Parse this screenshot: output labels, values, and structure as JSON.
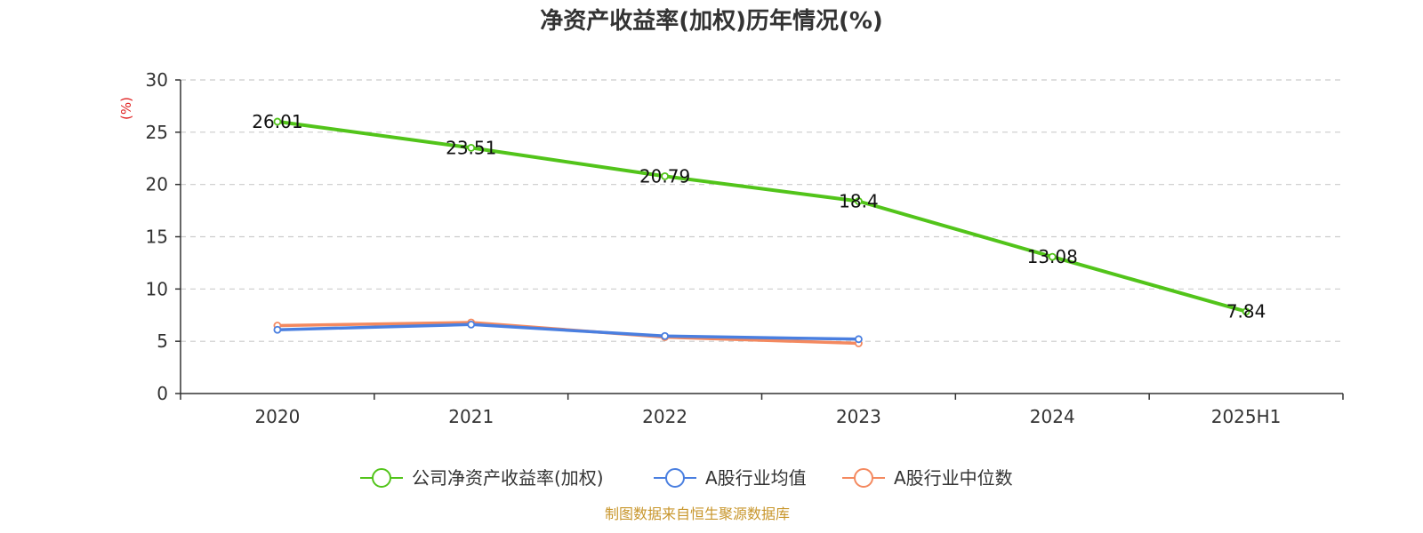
{
  "chart_data": {
    "type": "line",
    "title": "净资产收益率(加权)历年情况(%)",
    "ylabel": "(%)",
    "xlabel": "",
    "categories": [
      "2020",
      "2021",
      "2022",
      "2023",
      "2024",
      "2025H1"
    ],
    "ylim": [
      0,
      30
    ],
    "yticks": [
      0,
      5,
      10,
      15,
      20,
      25,
      30
    ],
    "grid": true,
    "legend_position": "bottom",
    "series": [
      {
        "name": "公司净资产收益率(加权)",
        "color": "#52c41a",
        "values": [
          26.01,
          23.51,
          20.79,
          18.4,
          13.08,
          7.84
        ],
        "data_labels": [
          "26.01",
          "23.51",
          "20.79",
          "18.4",
          "13.08",
          "7.84"
        ]
      },
      {
        "name": "A股行业均值",
        "color": "#4a7fe0",
        "values": [
          6.1,
          6.6,
          5.5,
          5.2,
          null,
          null
        ]
      },
      {
        "name": "A股行业中位数",
        "color": "#f4895f",
        "values": [
          6.5,
          6.8,
          5.4,
          4.8,
          null,
          null
        ]
      }
    ]
  },
  "ylabel_color": "#e02020",
  "source_text": "制图数据来自恒生聚源数据库",
  "source_color": "#c8962c"
}
